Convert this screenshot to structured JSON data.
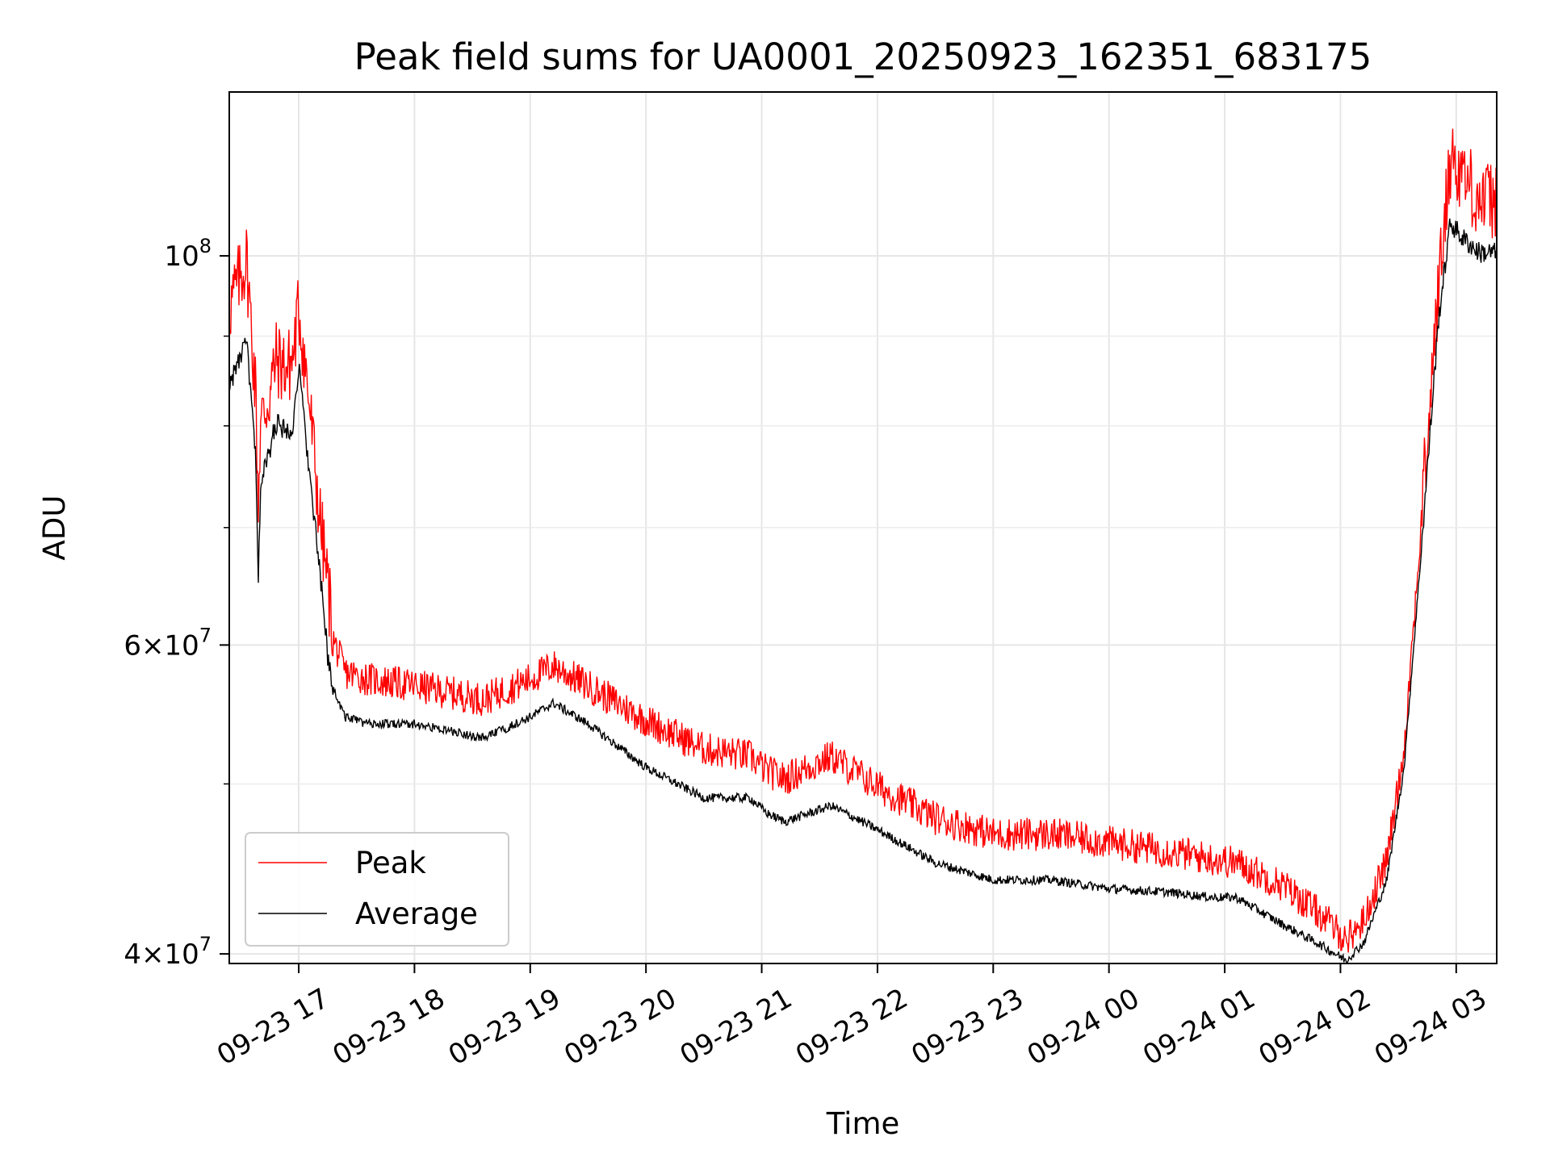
{
  "chart_data": {
    "type": "line",
    "title": "Peak field sums for UA0001_20250923_162351_683175",
    "xlabel": "Time",
    "ylabel": "ADU",
    "yscale": "log",
    "ylim": [
      39500000,
      124000000
    ],
    "x_range_hours": [
      -0.6,
      10.35
    ],
    "x_reference": "09-23 17:00",
    "grid": true,
    "legend": {
      "placement": "lower-left",
      "entries": [
        "Peak",
        "Average"
      ]
    },
    "x_ticks": [
      {
        "hour": 0,
        "label": "09-23 17"
      },
      {
        "hour": 1,
        "label": "09-23 18"
      },
      {
        "hour": 2,
        "label": "09-23 19"
      },
      {
        "hour": 3,
        "label": "09-23 20"
      },
      {
        "hour": 4,
        "label": "09-23 21"
      },
      {
        "hour": 5,
        "label": "09-23 22"
      },
      {
        "hour": 6,
        "label": "09-23 23"
      },
      {
        "hour": 7,
        "label": "09-24 00"
      },
      {
        "hour": 8,
        "label": "09-24 01"
      },
      {
        "hour": 9,
        "label": "09-24 02"
      },
      {
        "hour": 10,
        "label": "09-24 03"
      }
    ],
    "y_major_ticks": [
      {
        "value": 100000000,
        "base": "10",
        "exp": "8"
      },
      {
        "value": 60000000,
        "base": "6×10",
        "exp": "7"
      },
      {
        "value": 40000000,
        "base": "4×10",
        "exp": "7"
      }
    ],
    "y_minor_ticks": [
      50000000,
      70000000,
      80000000,
      90000000
    ],
    "series": [
      {
        "name": "Peak",
        "color": "#ff0000",
        "noise_fraction": 0.045,
        "points": [
          [
            -0.6,
            92000000
          ],
          [
            -0.45,
            98000000
          ],
          [
            -0.37,
            82000000
          ],
          [
            -0.35,
            71000000
          ],
          [
            -0.33,
            79000000
          ],
          [
            -0.25,
            82000000
          ],
          [
            -0.2,
            86000000
          ],
          [
            -0.1,
            85000000
          ],
          [
            -0.05,
            86000000
          ],
          [
            0.0,
            92000000
          ],
          [
            0.05,
            86000000
          ],
          [
            0.1,
            80000000
          ],
          [
            0.18,
            70000000
          ],
          [
            0.25,
            64000000
          ],
          [
            0.3,
            60000000
          ],
          [
            0.4,
            57500000
          ],
          [
            0.6,
            57000000
          ],
          [
            1.0,
            56500000
          ],
          [
            1.3,
            56000000
          ],
          [
            1.6,
            55500000
          ],
          [
            2.0,
            57000000
          ],
          [
            2.2,
            58000000
          ],
          [
            2.5,
            56500000
          ],
          [
            3.0,
            54000000
          ],
          [
            3.5,
            52000000
          ],
          [
            3.9,
            51500000
          ],
          [
            4.05,
            50500000
          ],
          [
            4.2,
            50000000
          ],
          [
            4.6,
            51500000
          ],
          [
            5.0,
            49500000
          ],
          [
            5.5,
            47500000
          ],
          [
            6.0,
            46500000
          ],
          [
            6.5,
            46500000
          ],
          [
            7.0,
            46000000
          ],
          [
            7.5,
            45500000
          ],
          [
            7.9,
            45000000
          ],
          [
            8.1,
            44800000
          ],
          [
            8.5,
            43500000
          ],
          [
            8.8,
            42000000
          ],
          [
            9.05,
            40500000
          ],
          [
            9.2,
            41500000
          ],
          [
            9.4,
            45000000
          ],
          [
            9.55,
            52000000
          ],
          [
            9.7,
            70000000
          ],
          [
            9.85,
            95000000
          ],
          [
            9.95,
            112000000
          ],
          [
            10.05,
            110000000
          ],
          [
            10.2,
            106000000
          ],
          [
            10.35,
            106000000
          ]
        ]
      },
      {
        "name": "Average",
        "color": "#000000",
        "noise_fraction": 0.012,
        "points": [
          [
            -0.6,
            84000000
          ],
          [
            -0.45,
            89000000
          ],
          [
            -0.37,
            76000000
          ],
          [
            -0.35,
            64000000
          ],
          [
            -0.33,
            74000000
          ],
          [
            -0.25,
            77000000
          ],
          [
            -0.2,
            80000000
          ],
          [
            -0.1,
            79000000
          ],
          [
            -0.05,
            80000000
          ],
          [
            0.0,
            86000000
          ],
          [
            0.05,
            80000000
          ],
          [
            0.1,
            74000000
          ],
          [
            0.18,
            66000000
          ],
          [
            0.25,
            59000000
          ],
          [
            0.3,
            56500000
          ],
          [
            0.4,
            54500000
          ],
          [
            0.6,
            54000000
          ],
          [
            1.0,
            54000000
          ],
          [
            1.3,
            53500000
          ],
          [
            1.6,
            53000000
          ],
          [
            2.0,
            54500000
          ],
          [
            2.2,
            55500000
          ],
          [
            2.5,
            54000000
          ],
          [
            3.0,
            51000000
          ],
          [
            3.5,
            49000000
          ],
          [
            3.9,
            49000000
          ],
          [
            4.05,
            48000000
          ],
          [
            4.2,
            47500000
          ],
          [
            4.6,
            48500000
          ],
          [
            5.0,
            47000000
          ],
          [
            5.5,
            45000000
          ],
          [
            6.0,
            44000000
          ],
          [
            6.5,
            44000000
          ],
          [
            7.0,
            43500000
          ],
          [
            7.5,
            43300000
          ],
          [
            7.9,
            43000000
          ],
          [
            8.1,
            43000000
          ],
          [
            8.5,
            41500000
          ],
          [
            8.8,
            40500000
          ],
          [
            9.05,
            39600000
          ],
          [
            9.2,
            40500000
          ],
          [
            9.4,
            44000000
          ],
          [
            9.55,
            51000000
          ],
          [
            9.7,
            68000000
          ],
          [
            9.85,
            92000000
          ],
          [
            9.95,
            104000000
          ],
          [
            10.05,
            102000000
          ],
          [
            10.2,
            100000000
          ],
          [
            10.35,
            100000000
          ]
        ]
      }
    ]
  }
}
